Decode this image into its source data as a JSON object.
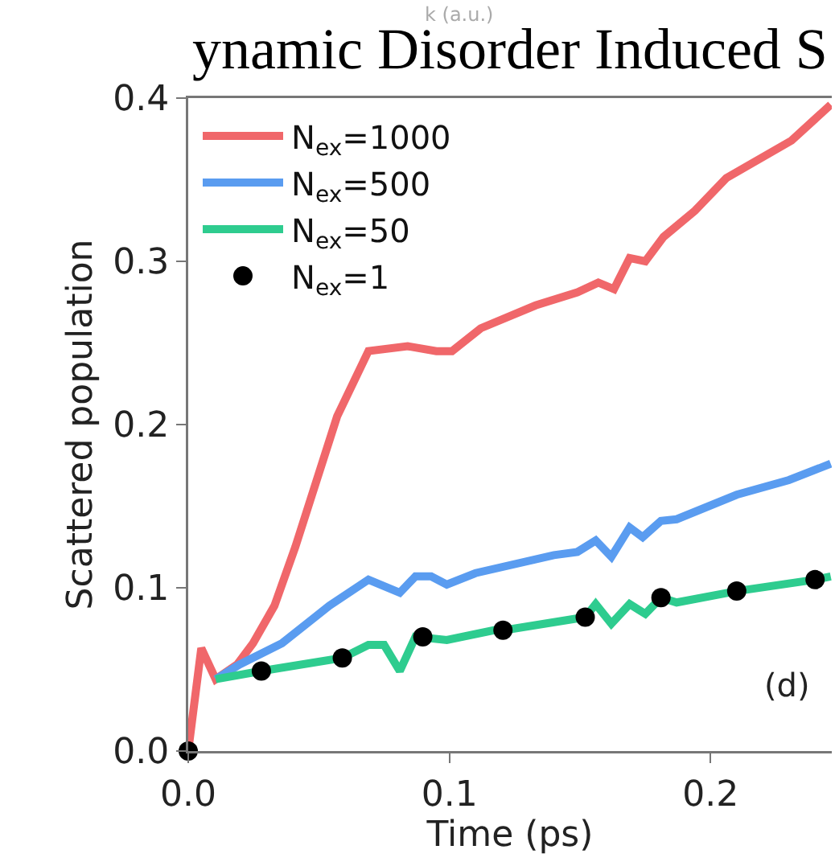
{
  "chart_data": {
    "type": "line",
    "title": "ynamic Disorder Induced S",
    "xlabel": "Time (ps)",
    "ylabel": "Scattered population",
    "annotations": [
      "k (a.u.)",
      "(d)"
    ],
    "xlim": [
      0,
      0.2464
    ],
    "ylim": [
      0,
      0.4
    ],
    "xticks": [
      {
        "value": 0,
        "label": "0.0"
      },
      0.1,
      0.2
    ],
    "yticks": [
      {
        "value": 0,
        "label": "0.0"
      },
      0.1,
      0.2,
      0.3,
      0.4
    ],
    "grid": false,
    "legend": "top left",
    "series": [
      {
        "name": "N$_{ex}$=1000",
        "color": "#f0676a",
        "x": [
          0,
          0.005,
          0.0105,
          0.0187,
          0.0248,
          0.033,
          0.041,
          0.049,
          0.057,
          0.069,
          0.084,
          0.095,
          0.101,
          0.112,
          0.133,
          0.149,
          0.157,
          0.163,
          0.169,
          0.175,
          0.182,
          0.194,
          0.206,
          0.231,
          0.246
        ],
        "values": [
          0,
          0.063,
          0.044,
          0.053,
          0.066,
          0.089,
          0.125,
          0.165,
          0.205,
          0.245,
          0.248,
          0.245,
          0.245,
          0.259,
          0.273,
          0.281,
          0.287,
          0.283,
          0.302,
          0.3,
          0.315,
          0.331,
          0.351,
          0.374,
          0.396
        ]
      },
      {
        "name": "N$_{ex}$=500",
        "color": "#5a9cf0",
        "x": [
          0.0105,
          0.0196,
          0.0359,
          0.054,
          0.069,
          0.081,
          0.087,
          0.093,
          0.099,
          0.11,
          0.14,
          0.149,
          0.156,
          0.162,
          0.169,
          0.174,
          0.181,
          0.187,
          0.21,
          0.23,
          0.246
        ],
        "values": [
          0.044,
          0.053,
          0.066,
          0.089,
          0.105,
          0.097,
          0.107,
          0.107,
          0.102,
          0.109,
          0.12,
          0.122,
          0.129,
          0.119,
          0.137,
          0.131,
          0.141,
          0.142,
          0.157,
          0.166,
          0.176
        ]
      },
      {
        "name": "N$_{ex}$=50",
        "color": "#2ecc8f",
        "x": [
          0.0105,
          0.028,
          0.059,
          0.069,
          0.075,
          0.081,
          0.087,
          0.099,
          0.117,
          0.121,
          0.152,
          0.156,
          0.162,
          0.169,
          0.175,
          0.181,
          0.187,
          0.21,
          0.24,
          0.246
        ],
        "values": [
          0.044,
          0.049,
          0.057,
          0.065,
          0.065,
          0.049,
          0.07,
          0.068,
          0.074,
          0.074,
          0.082,
          0.09,
          0.078,
          0.09,
          0.084,
          0.094,
          0.091,
          0.098,
          0.105,
          0.107
        ]
      },
      {
        "name": "N$_{ex}$=1",
        "color": "#000000",
        "type": "scatter",
        "marker": "circle",
        "x": [
          0,
          0.028,
          0.059,
          0.0898,
          0.1205,
          0.152,
          0.181,
          0.21,
          0.24
        ],
        "values": [
          0,
          0.049,
          0.057,
          0.07,
          0.074,
          0.082,
          0.094,
          0.098,
          0.105
        ]
      }
    ]
  }
}
